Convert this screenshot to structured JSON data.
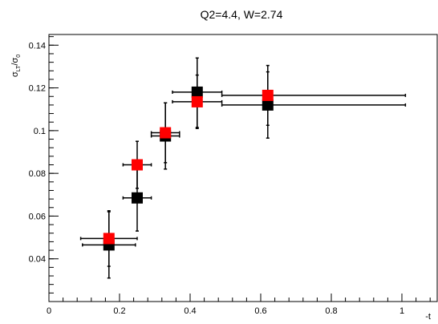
{
  "chart_data": {
    "type": "scatter",
    "title": "Q2=4.4, W=2.74",
    "xlabel": "-t",
    "ylabel": {
      "base": "σ",
      "sub": "LT",
      "over": "/σ",
      "sub2": "0"
    },
    "xlim": [
      0,
      1.1
    ],
    "ylim": [
      0.02,
      0.145
    ],
    "xticks": [
      0,
      0.2,
      0.4,
      0.6,
      0.8,
      1
    ],
    "xtick_labels": [
      "0",
      "0.2",
      "0.4",
      "0.6",
      "0.8",
      "1"
    ],
    "yticks": [
      0.04,
      0.06,
      0.08,
      0.1,
      0.12,
      0.14
    ],
    "ytick_labels": [
      "0.04",
      "0.06",
      "0.08",
      "0.1",
      "0.12",
      "0.14"
    ],
    "grid": false,
    "legend": "none",
    "series": [
      {
        "color": "#000000",
        "points": [
          {
            "x": 0.17,
            "y": 0.0465,
            "xerr_lo": 0.075,
            "xerr_hi": 0.075,
            "yerr_lo": 0.0155,
            "yerr_hi": 0.0155
          },
          {
            "x": 0.25,
            "y": 0.0685,
            "xerr_lo": 0.04,
            "xerr_hi": 0.04,
            "yerr_lo": 0.0155,
            "yerr_hi": 0.0155
          },
          {
            "x": 0.33,
            "y": 0.0975,
            "xerr_lo": 0.04,
            "xerr_hi": 0.04,
            "yerr_lo": 0.0155,
            "yerr_hi": 0.0155
          },
          {
            "x": 0.42,
            "y": 0.118,
            "xerr_lo": 0.07,
            "xerr_hi": 0.07,
            "yerr_lo": 0.0165,
            "yerr_hi": 0.016
          },
          {
            "x": 0.62,
            "y": 0.112,
            "xerr_lo": 0.13,
            "xerr_hi": 0.39,
            "yerr_lo": 0.0155,
            "yerr_hi": 0.0155
          }
        ]
      },
      {
        "color": "#ff0000",
        "points": [
          {
            "x": 0.17,
            "y": 0.0495,
            "xerr_lo": 0.08,
            "xerr_hi": 0.08,
            "yerr_lo": 0.013,
            "yerr_hi": 0.013
          },
          {
            "x": 0.25,
            "y": 0.084,
            "xerr_lo": 0.04,
            "xerr_hi": 0.04,
            "yerr_lo": 0.011,
            "yerr_hi": 0.011
          },
          {
            "x": 0.33,
            "y": 0.099,
            "xerr_lo": 0.04,
            "xerr_hi": 0.04,
            "yerr_lo": 0.014,
            "yerr_hi": 0.014
          },
          {
            "x": 0.42,
            "y": 0.1135,
            "xerr_lo": 0.07,
            "xerr_hi": 0.07,
            "yerr_lo": 0.0125,
            "yerr_hi": 0.0125
          },
          {
            "x": 0.62,
            "y": 0.1165,
            "xerr_lo": 0.13,
            "xerr_hi": 0.39,
            "yerr_lo": 0.014,
            "yerr_hi": 0.014
          }
        ]
      }
    ]
  }
}
